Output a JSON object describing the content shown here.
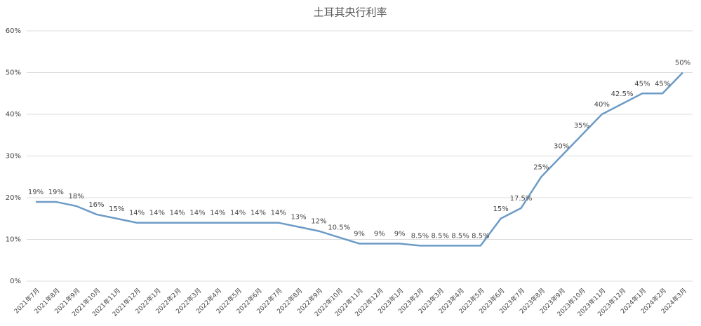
{
  "chart_data": {
    "type": "line",
    "title": "土耳其央行利率",
    "categories": [
      "2021年7月",
      "2021年8月",
      "2021年9月",
      "2021年10月",
      "2021年11月",
      "2021年12月",
      "2022年1月",
      "2022年2月",
      "2022年3月",
      "2022年4月",
      "2022年5月",
      "2022年6月",
      "2022年7月",
      "2022年8月",
      "2022年9月",
      "2022年10月",
      "2022年11月",
      "2022年12月",
      "2023年1月",
      "2023年2月",
      "2023年3月",
      "2023年4月",
      "2023年5月",
      "2023年6月",
      "2023年7月",
      "2023年8月",
      "2023年9月",
      "2023年10月",
      "2023年11月",
      "2023年12月",
      "2024年1月",
      "2024年2月",
      "2024年3月"
    ],
    "values": [
      19,
      19,
      18,
      16,
      15,
      14,
      14,
      14,
      14,
      14,
      14,
      14,
      14,
      13,
      12,
      10.5,
      9,
      9,
      9,
      8.5,
      8.5,
      8.5,
      8.5,
      15,
      17.5,
      25,
      30,
      35,
      40,
      42.5,
      45,
      45,
      50
    ],
    "value_labels": [
      "19%",
      "19%",
      "18%",
      "16%",
      "15%",
      "14%",
      "14%",
      "14%",
      "14%",
      "14%",
      "14%",
      "14%",
      "14%",
      "13%",
      "12%",
      "10.5%",
      "9%",
      "9%",
      "9%",
      "8.5%",
      "8.5%",
      "8.5%",
      "8.5%",
      "15%",
      "17.5%",
      "25%",
      "30%",
      "35%",
      "40%",
      "42.5%",
      "45%",
      "45%",
      "50%"
    ],
    "color": "#6c9bc6",
    "ylim": [
      0,
      60
    ],
    "yticks": [
      {
        "value": 0,
        "label": "0%"
      },
      {
        "value": 10,
        "label": "10%"
      },
      {
        "value": 20,
        "label": "20%"
      },
      {
        "value": 30,
        "label": "30%"
      },
      {
        "value": 40,
        "label": "40%"
      },
      {
        "value": 50,
        "label": "50%"
      },
      {
        "value": 60,
        "label": "60%"
      }
    ],
    "grid": true
  }
}
